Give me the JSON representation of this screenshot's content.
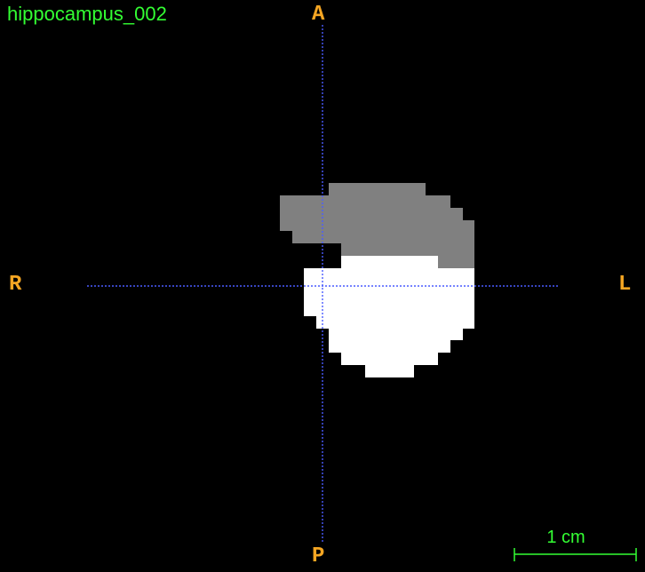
{
  "viewer": {
    "title": "hippocampus_002",
    "orientation": {
      "anterior": "A",
      "posterior": "P",
      "right": "R",
      "left": "L"
    },
    "scalebar": {
      "label": "1 cm"
    },
    "colors": {
      "background": "#000000",
      "title": "#33ff33",
      "orientation_labels": "#f5a623",
      "crosshair": "#4a5cff",
      "segment_gray": "#808080",
      "segment_white": "#ffffff",
      "scalebar": "#33ff33"
    },
    "segments": [
      "gray-segment",
      "white-segment"
    ]
  }
}
